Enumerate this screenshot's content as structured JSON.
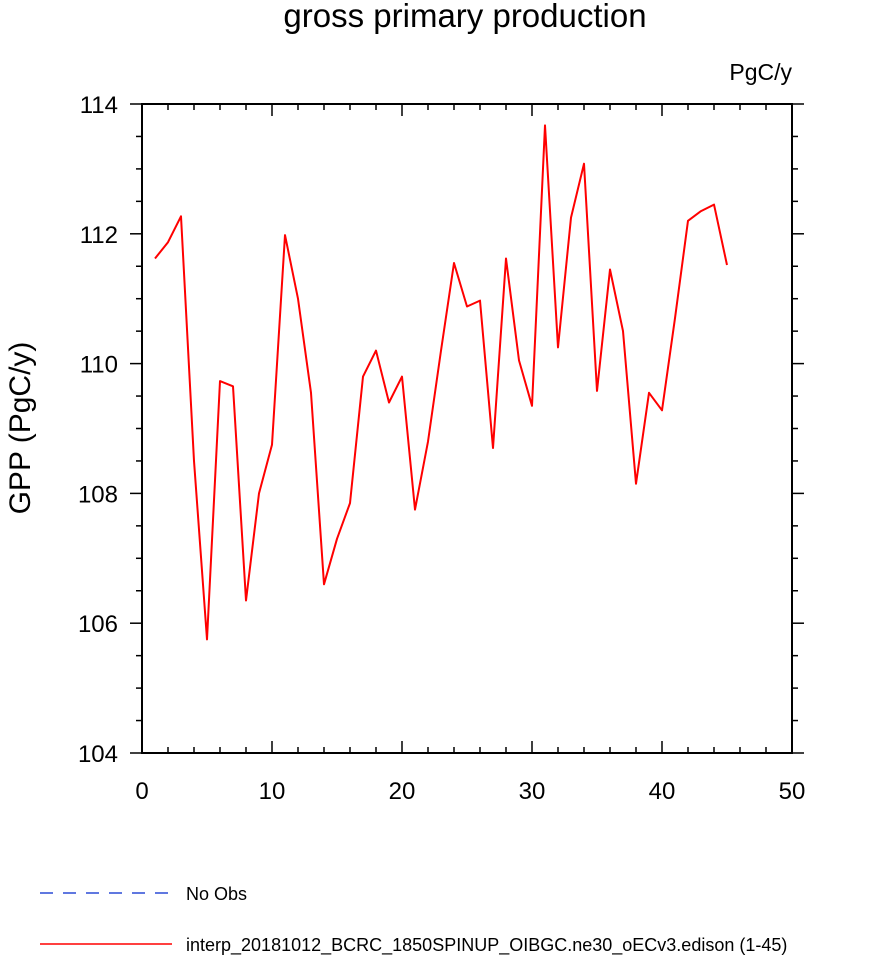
{
  "chart_data": {
    "type": "line",
    "title": "gross primary production",
    "units_label": "PgC/y",
    "xlabel": "",
    "ylabel": "GPP  (PgC/y)",
    "xlim": [
      0,
      50
    ],
    "ylim": [
      104,
      114
    ],
    "xticks": [
      0,
      10,
      20,
      30,
      40,
      50
    ],
    "yticks": [
      104,
      106,
      108,
      110,
      112,
      114
    ],
    "grid": false,
    "legend_position": "bottom-left",
    "legend": [
      {
        "label": "No Obs",
        "color": "#2b4bd6",
        "style": "dashed"
      },
      {
        "label": "interp_20181012_BCRC_1850SPINUP_OIBGC.ne30_oECv3.edison (1-45)",
        "color": "#ff0000",
        "style": "solid"
      }
    ],
    "series": [
      {
        "name": "interp_20181012_BCRC_1850SPINUP_OIBGC.ne30_oECv3.edison (1-45)",
        "color": "#ff0000",
        "x": [
          1,
          2,
          3,
          4,
          5,
          6,
          7,
          8,
          9,
          10,
          11,
          12,
          13,
          14,
          15,
          16,
          17,
          18,
          19,
          20,
          21,
          22,
          23,
          24,
          25,
          26,
          27,
          28,
          29,
          30,
          31,
          32,
          33,
          34,
          35,
          36,
          37,
          38,
          39,
          40,
          41,
          42,
          43,
          44,
          45
        ],
        "values": [
          111.62,
          111.87,
          112.27,
          108.5,
          105.75,
          109.73,
          109.65,
          106.35,
          108.0,
          108.75,
          111.98,
          111.0,
          109.55,
          106.6,
          107.3,
          107.85,
          109.8,
          110.2,
          109.4,
          109.8,
          107.75,
          108.8,
          110.2,
          111.55,
          110.88,
          110.97,
          108.7,
          111.62,
          110.05,
          109.35,
          113.67,
          110.25,
          112.25,
          113.08,
          109.58,
          111.45,
          110.5,
          108.15,
          109.55,
          109.28,
          110.7,
          112.2,
          112.35,
          112.45,
          111.52
        ]
      }
    ]
  }
}
